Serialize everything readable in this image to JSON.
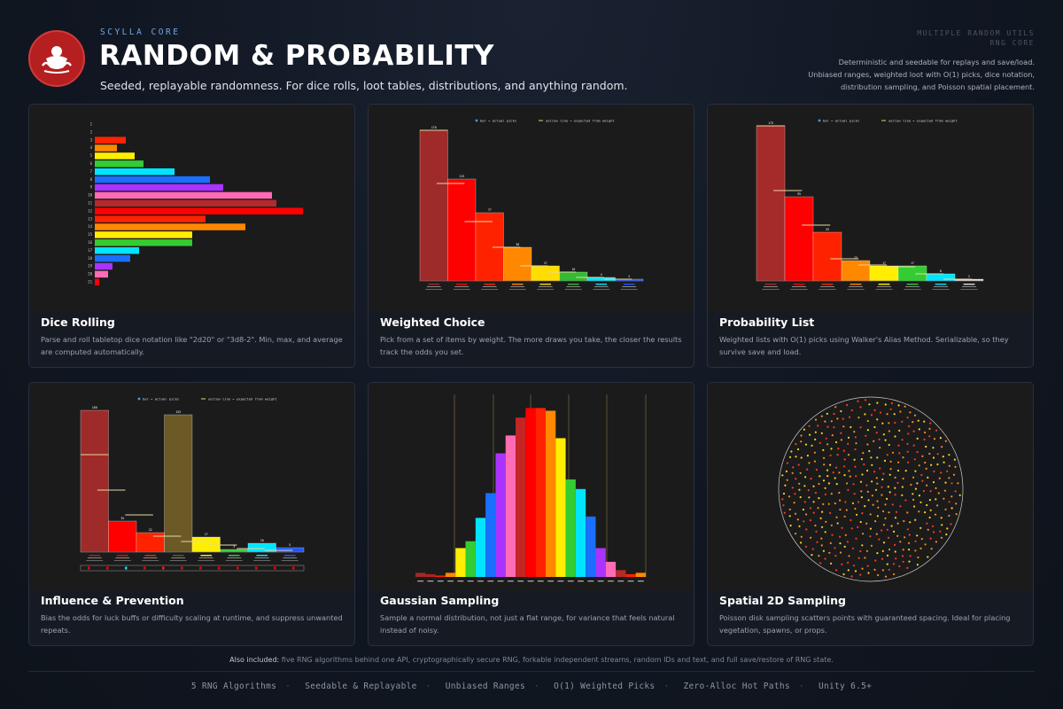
{
  "header": {
    "eyebrow": "SCYLLA CORE",
    "title": "RANDOM & PROBABILITY",
    "subtitle": "Seeded, replayable randomness. For dice rolls, loot tables, distributions, and anything random.",
    "right_line1": "MULTIPLE RANDOM UTILS",
    "right_line2": "RNG CORE",
    "right_desc": "Deterministic and seedable for replays and save/load. Unbiased ranges, weighted loot with O(1) picks, dice notation, distribution sampling, and Poisson spatial placement.",
    "logo_icon": "scylla-emblem-icon"
  },
  "cards": [
    {
      "title": "Dice Rolling",
      "desc": "Parse and roll tabletop dice notation like \"2d20\" or \"3d8-2\". Min, max, and average are computed automatically."
    },
    {
      "title": "Weighted Choice",
      "desc": "Pick from a set of items by weight. The more draws you take, the closer the results track the odds you set."
    },
    {
      "title": "Probability List",
      "desc": "Weighted lists with O(1) picks using Walker's Alias Method. Serializable, so they survive save and load."
    },
    {
      "title": "Influence & Prevention",
      "desc": "Bias the odds for luck buffs or difficulty scaling at runtime, and suppress unwanted repeats."
    },
    {
      "title": "Gaussian Sampling",
      "desc": "Sample a normal distribution, not just a flat range, for variance that feels natural instead of noisy."
    },
    {
      "title": "Spatial 2D Sampling",
      "desc": "Poisson disk sampling scatters points with guaranteed spacing. Ideal for placing vegetation, spawns, or props."
    }
  ],
  "chart_data": [
    {
      "type": "bar",
      "orientation": "horizontal",
      "categories": [
        "1",
        "2",
        "3",
        "4",
        "5",
        "6",
        "7",
        "8",
        "9",
        "10",
        "11",
        "12",
        "13",
        "14",
        "15",
        "16",
        "17",
        "18",
        "19",
        "20",
        "21"
      ],
      "values": [
        0,
        0,
        35,
        25,
        45,
        55,
        90,
        130,
        145,
        200,
        205,
        235,
        125,
        170,
        110,
        110,
        50,
        40,
        20,
        15,
        5
      ],
      "colors": [
        "#ff0000",
        "#ff0000",
        "#ff2200",
        "#ff8800",
        "#ffee00",
        "#33cc33",
        "#00e5ff",
        "#1a6fff",
        "#aa33ff",
        "#ff6bb5",
        "#b52a2a",
        "#ff0000",
        "#ff2200",
        "#ff8800",
        "#ffee00",
        "#33cc33",
        "#00e5ff",
        "#1a6fff",
        "#aa33ff",
        "#ff6bb5",
        "#ff0000"
      ]
    },
    {
      "type": "bar",
      "legend": [
        "bar = actual picks",
        "yellow line = expected from weight"
      ],
      "values": [
        170,
        115,
        77,
        38,
        17,
        10,
        4,
        2
      ],
      "expected": [
        170,
        110,
        67,
        38,
        17,
        10,
        4,
        2
      ],
      "colors": [
        "#9e2a2a",
        "#ff0000",
        "#ff2200",
        "#ff8800",
        "#ffdd00",
        "#33bb33",
        "#00e5ff",
        "#2255ff"
      ]
    },
    {
      "type": "bar",
      "legend": [
        "bar = actual picks",
        "yellow line = expected from weight"
      ],
      "values": [
        175,
        95,
        55,
        23,
        17,
        17,
        8,
        2
      ],
      "expected": [
        175,
        102,
        63,
        25,
        18,
        16,
        8,
        2
      ],
      "colors": [
        "#a52a2a",
        "#ff0000",
        "#ff2200",
        "#ff8800",
        "#ffee00",
        "#33cc33",
        "#00e5ff",
        "#dddddd"
      ]
    },
    {
      "type": "bar",
      "legend": [
        "bar = actual picks",
        "yellow line = expected from weight"
      ],
      "values": [
        160,
        35,
        22,
        155,
        17,
        3,
        10,
        5
      ],
      "expected": [
        110,
        70,
        42,
        18,
        12,
        8,
        4,
        2
      ],
      "colors": [
        "#9e2a2a",
        "#ff0000",
        "#ff2200",
        "#6b5a25",
        "#ffee00",
        "#33cc33",
        "#00e5ff",
        "#2255ff"
      ]
    },
    {
      "type": "bar",
      "values": [
        3,
        2,
        1,
        3,
        21,
        26,
        43,
        61,
        90,
        103,
        116,
        123,
        123,
        121,
        101,
        71,
        64,
        44,
        21,
        11,
        5,
        2,
        3
      ],
      "colors": [
        "#9e2a2a",
        "#b52020",
        "#ff2200",
        "#ff8800",
        "#ffee00",
        "#33cc33",
        "#00e5ff",
        "#1a6fff",
        "#aa33ff",
        "#ff6bb5",
        "#c42525",
        "#ff0000",
        "#ff2200",
        "#ff8800",
        "#ffee00",
        "#33cc33",
        "#00e5ff",
        "#1a6fff",
        "#aa33ff",
        "#ff6bb5",
        "#b52a2a",
        "#ff2200",
        "#ff8800"
      ]
    },
    {
      "type": "scatter",
      "shape": "circle",
      "point_colors": [
        "#ff3b1f",
        "#ff8c1a",
        "#ffd21f"
      ]
    }
  ],
  "footer": {
    "also_lead": "Also included:",
    "also_text": " five RNG algorithms behind one API, cryptographically secure RNG, forkable independent streams, random IDs and text, and full save/restore of RNG state.",
    "tags": [
      "5 RNG Algorithms",
      "Seedable & Replayable",
      "Unbiased Ranges",
      "O(1) Weighted Picks",
      "Zero-Alloc Hot Paths",
      "Unity 6.5+"
    ]
  }
}
